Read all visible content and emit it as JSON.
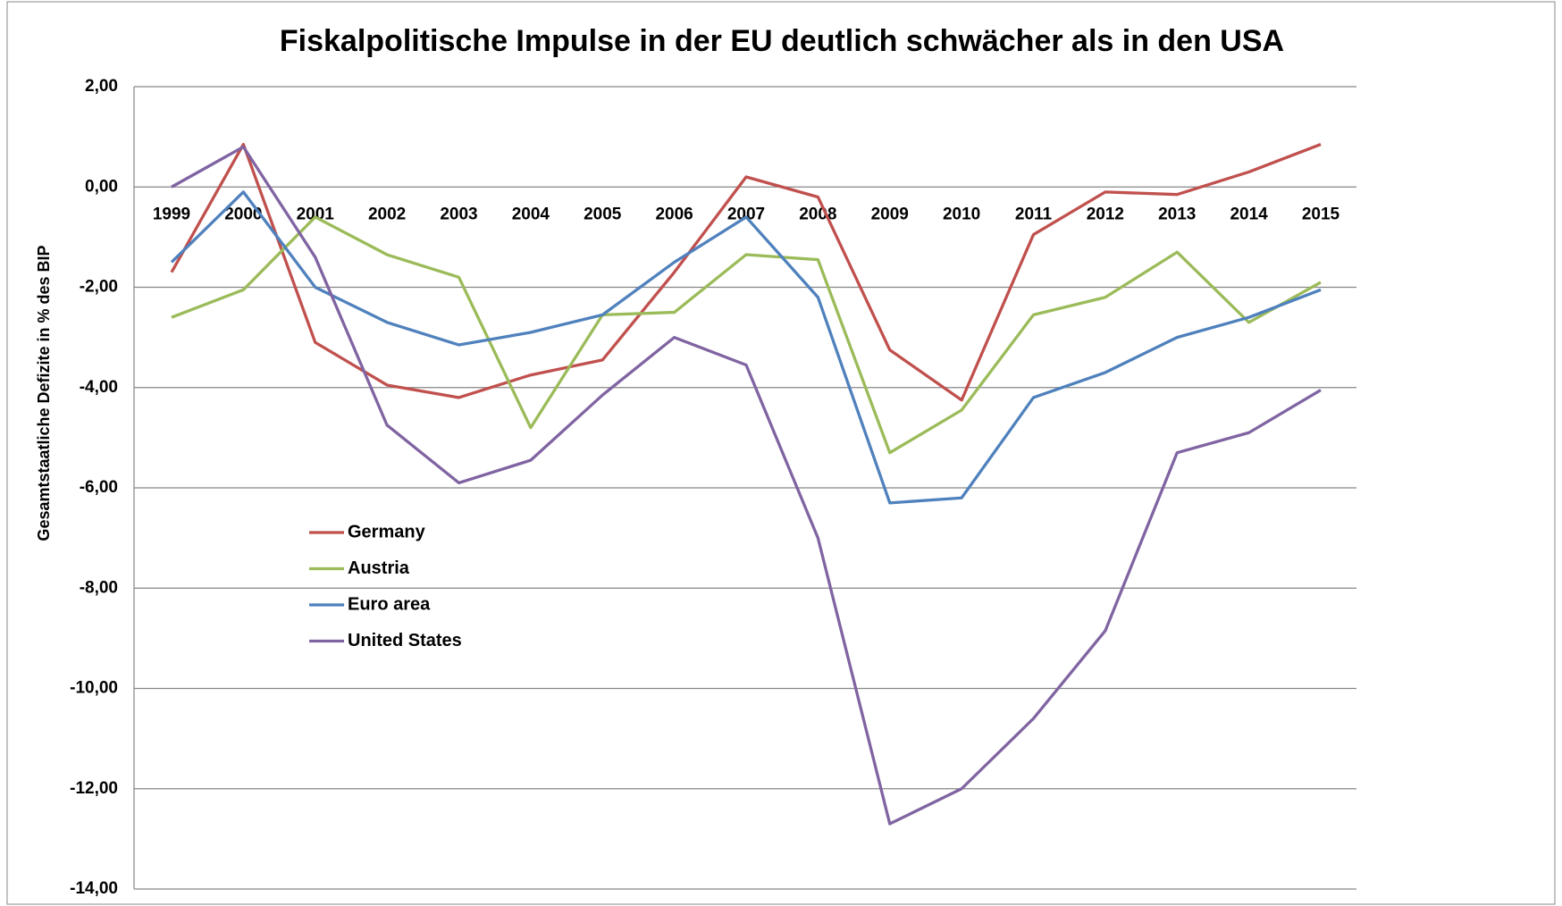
{
  "chart_data": {
    "type": "line",
    "title": "Fiskalpolitische Impulse in der EU deutlich schwächer als in den USA",
    "y_label": "Gesamtstaatliche Defizite in % des BIP",
    "categories": [
      "1999",
      "2000",
      "2001",
      "2002",
      "2003",
      "2004",
      "2005",
      "2006",
      "2007",
      "2008",
      "2009",
      "2010",
      "2011",
      "2012",
      "2013",
      "2014",
      "2015"
    ],
    "series": [
      {
        "name": "Germany",
        "color": "#c0504d",
        "values": [
          -1.7,
          0.85,
          -3.1,
          -3.95,
          -4.2,
          -3.75,
          -3.45,
          -1.7,
          0.2,
          -0.2,
          -3.25,
          -4.25,
          -0.95,
          -0.1,
          -0.15,
          0.3,
          0.85
        ]
      },
      {
        "name": "Austria",
        "color": "#9bbb59",
        "values": [
          -2.6,
          -2.05,
          -0.6,
          -1.35,
          -1.8,
          -4.8,
          -2.55,
          -2.5,
          -1.35,
          -1.45,
          -5.3,
          -4.45,
          -2.55,
          -2.2,
          -1.3,
          -2.7,
          -1.9
        ]
      },
      {
        "name": "Euro area",
        "color": "#4f81bd",
        "values": [
          -1.5,
          -0.1,
          -2.0,
          -2.7,
          -3.15,
          -2.9,
          -2.55,
          -1.5,
          -0.6,
          -2.2,
          -6.3,
          -6.2,
          -4.2,
          -3.7,
          -3.0,
          -2.6,
          -2.05
        ]
      },
      {
        "name": "United States",
        "color": "#8064a2",
        "values": [
          0,
          0.8,
          -1.4,
          -4.75,
          -5.9,
          -5.45,
          -4.15,
          -3.0,
          -3.55,
          -7.0,
          -12.7,
          -12.0,
          -10.6,
          -8.85,
          -5.3,
          -4.9,
          -4.05
        ]
      }
    ],
    "ylim": [
      -14,
      2
    ],
    "yticks": [
      {
        "value": 2,
        "label": "2,00"
      },
      {
        "value": 0,
        "label": "0,00"
      },
      {
        "value": -2,
        "label": "-2,00"
      },
      {
        "value": -4,
        "label": "-4,00"
      },
      {
        "value": -6,
        "label": "-6,00"
      },
      {
        "value": -8,
        "label": "-8,00"
      },
      {
        "value": -10,
        "label": "-10,00"
      },
      {
        "value": -12,
        "label": "-12,00"
      },
      {
        "value": -14,
        "label": "-14,00"
      }
    ],
    "grid": true,
    "legend": "left"
  }
}
